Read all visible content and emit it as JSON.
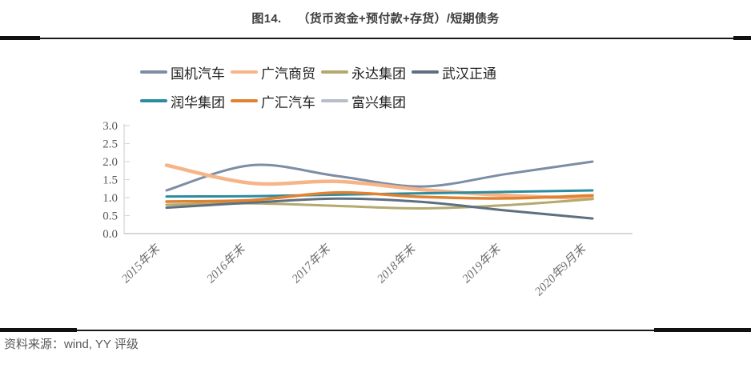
{
  "header": {
    "figure_label": "图14.",
    "title": "（货币资金+预付款+存货）/短期债务"
  },
  "footer": {
    "source_text": "资料来源：wind, YY 评级"
  },
  "chart_data": {
    "type": "line",
    "title": "（货币资金+预付款+存货）/短期债务",
    "categories": [
      "2015年末",
      "2016年末",
      "2017年末",
      "2018年末",
      "2019年末",
      "2020年9月末"
    ],
    "series": [
      {
        "name": "国机汽车",
        "color": "#7c8da5",
        "line_width": 3,
        "smooth": true,
        "values": [
          1.2,
          1.9,
          1.6,
          1.31,
          1.66,
          2.0
        ]
      },
      {
        "name": "广汽商贸",
        "color": "#f6b588",
        "line_width": 4.5,
        "smooth": true,
        "values": [
          1.9,
          1.4,
          1.45,
          1.22,
          1.06,
          0.98
        ]
      },
      {
        "name": "永达集团",
        "color": "#b4a96e",
        "line_width": 3,
        "smooth": true,
        "values": [
          0.8,
          0.84,
          0.77,
          0.7,
          0.79,
          0.96
        ]
      },
      {
        "name": "武汉正通",
        "color": "#5d6f80",
        "line_width": 3,
        "smooth": true,
        "values": [
          0.72,
          0.86,
          0.97,
          0.88,
          0.64,
          0.42
        ]
      },
      {
        "name": "润华集团",
        "color": "#2c8c9f",
        "line_width": 3,
        "smooth": true,
        "values": [
          1.03,
          1.04,
          1.08,
          1.12,
          1.16,
          1.2
        ]
      },
      {
        "name": "广汇汽车",
        "color": "#e08231",
        "line_width": 3.5,
        "smooth": true,
        "values": [
          0.89,
          0.93,
          1.14,
          1.02,
          0.98,
          1.06
        ]
      },
      {
        "name": "富兴集团",
        "color": "#b5bfca",
        "line_width": 3,
        "smooth": true,
        "values": []
      }
    ],
    "legend_rows": [
      [
        0,
        1,
        2,
        3
      ],
      [
        4,
        5,
        6
      ]
    ],
    "legend_position": "top-left",
    "ylim": [
      0.0,
      3.0
    ],
    "ytick_step": 0.5,
    "ytick_labels": [
      "0.0",
      "0.5",
      "1.0",
      "1.5",
      "2.0",
      "2.5",
      "3.0"
    ],
    "grid": false,
    "axis_color": "#c9c9c9"
  }
}
